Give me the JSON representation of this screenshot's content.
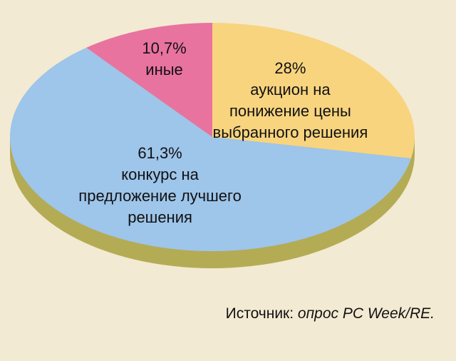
{
  "chart_data": {
    "type": "pie",
    "categories": [
      "аукцион на понижение цены выбранного решения",
      "конкурс на предложение лучшего решения",
      "иные"
    ],
    "values": [
      28,
      61.3,
      10.7
    ],
    "value_labels": [
      "28%",
      "61,3%",
      "10,7%"
    ],
    "colors": [
      "#f8d47f",
      "#9ec5ea",
      "#e8739f"
    ],
    "source": {
      "prefix": "Источник:",
      "text": "опрос PC Week/RE."
    }
  }
}
